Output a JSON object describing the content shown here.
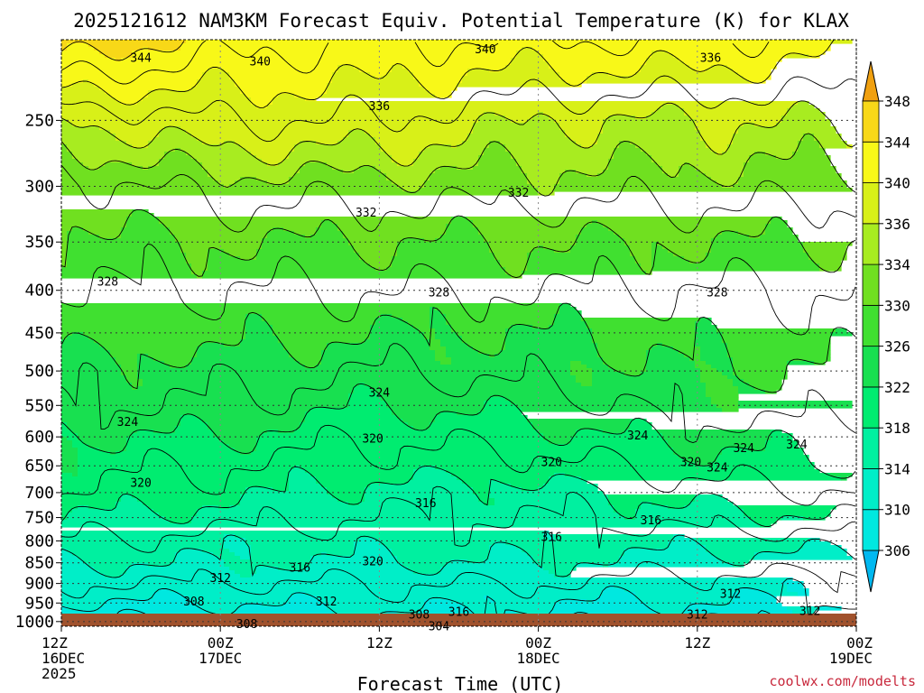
{
  "chart_data": {
    "type": "heatmap",
    "title": "2025121612 NAM3KM Forecast Equiv. Potential Temperature (K) for KLAX",
    "xlabel": "Forecast Time (UTC)",
    "ylabel": "",
    "credit": "coolwx.com/modelts",
    "x_range_hours": [
      0,
      60
    ],
    "y_range_hpa": [
      200,
      1013
    ],
    "y_scale": "log",
    "yticks": [
      250,
      300,
      350,
      400,
      450,
      500,
      550,
      600,
      650,
      700,
      750,
      800,
      850,
      900,
      950,
      1000
    ],
    "ytick_labels": [
      "250",
      "300",
      "350",
      "400",
      "450",
      "500",
      "550",
      "600",
      "650",
      "700",
      "750",
      "800",
      "850",
      "900",
      "950",
      "1000"
    ],
    "xticks": [
      {
        "hour": 0,
        "line1": "12Z",
        "line2": "16DEC",
        "line3": "2025"
      },
      {
        "hour": 12,
        "line1": "00Z",
        "line2": "17DEC",
        "line3": ""
      },
      {
        "hour": 24,
        "line1": "12Z",
        "line2": "",
        "line3": ""
      },
      {
        "hour": 36,
        "line1": "00Z",
        "line2": "18DEC",
        "line3": ""
      },
      {
        "hour": 48,
        "line1": "12Z",
        "line2": "",
        "line3": ""
      },
      {
        "hour": 60,
        "line1": "00Z",
        "line2": "19DEC",
        "line3": ""
      }
    ],
    "colorbar": {
      "units": "K",
      "levels": [
        306,
        310,
        314,
        318,
        322,
        326,
        330,
        334,
        336,
        340,
        344,
        348
      ],
      "labels": [
        "306",
        "310",
        "314",
        "318",
        "322",
        "326",
        "330",
        "334",
        "336",
        "340",
        "344",
        "348"
      ],
      "colors": [
        "#00d8ff",
        "#00e8e0",
        "#00eec8",
        "#00f0a0",
        "#00ec70",
        "#18e050",
        "#40e030",
        "#70e020",
        "#a8ec20",
        "#d8f018",
        "#f8f818",
        "#f8d818",
        "#f0b010"
      ],
      "below_color": "#00b8f0",
      "above_color": "#f0a010"
    },
    "profiles": {
      "pressure": [
        200,
        250,
        300,
        350,
        400,
        450,
        500,
        550,
        600,
        650,
        700,
        750,
        800,
        850,
        900,
        950,
        1000
      ],
      "hour_0": [
        346,
        336,
        331,
        329,
        328,
        327,
        325,
        324,
        322,
        321,
        320,
        318,
        316,
        314,
        312,
        310,
        308
      ],
      "hour_12": [
        343,
        338,
        333,
        330,
        328,
        327,
        325,
        324,
        322,
        320,
        319,
        317,
        315,
        314,
        312,
        310,
        308
      ],
      "hour_24": [
        342,
        338,
        333,
        330,
        328,
        326,
        324,
        322,
        320,
        319,
        317,
        316,
        315,
        314,
        312,
        311,
        309
      ],
      "hour_36": [
        342,
        336,
        333,
        330,
        328,
        326,
        325,
        323,
        321,
        319,
        317,
        316,
        315,
        314,
        312,
        310,
        309
      ],
      "hour_48": [
        342,
        336,
        333,
        330,
        328,
        327,
        326,
        325,
        323,
        321,
        319,
        317,
        315,
        313,
        311,
        310,
        308
      ],
      "hour_60": [
        341,
        336,
        333,
        330,
        328,
        327,
        326,
        325,
        323,
        322,
        320,
        318,
        315,
        313,
        311,
        310,
        308
      ]
    },
    "contour_labels": [
      {
        "value": "344",
        "hour": 6.0,
        "hpa": 210
      },
      {
        "value": "340",
        "hour": 15.0,
        "hpa": 212
      },
      {
        "value": "340",
        "hour": 32.0,
        "hpa": 205
      },
      {
        "value": "336",
        "hour": 49.0,
        "hpa": 210
      },
      {
        "value": "336",
        "hour": 24.0,
        "hpa": 240
      },
      {
        "value": "332",
        "hour": 23.0,
        "hpa": 322
      },
      {
        "value": "332",
        "hour": 34.5,
        "hpa": 305
      },
      {
        "value": "328",
        "hour": 3.5,
        "hpa": 390
      },
      {
        "value": "328",
        "hour": 28.5,
        "hpa": 402
      },
      {
        "value": "328",
        "hour": 49.5,
        "hpa": 402
      },
      {
        "value": "324",
        "hour": 24.0,
        "hpa": 530
      },
      {
        "value": "324",
        "hour": 5.0,
        "hpa": 575
      },
      {
        "value": "324",
        "hour": 43.5,
        "hpa": 597
      },
      {
        "value": "324",
        "hour": 51.5,
        "hpa": 618
      },
      {
        "value": "324",
        "hour": 55.5,
        "hpa": 612
      },
      {
        "value": "324",
        "hour": 49.5,
        "hpa": 652
      },
      {
        "value": "320",
        "hour": 23.5,
        "hpa": 602
      },
      {
        "value": "320",
        "hour": 37.0,
        "hpa": 642
      },
      {
        "value": "320",
        "hour": 47.5,
        "hpa": 642
      },
      {
        "value": "320",
        "hour": 6.0,
        "hpa": 680
      },
      {
        "value": "320",
        "hour": 23.5,
        "hpa": 845
      },
      {
        "value": "316",
        "hour": 27.5,
        "hpa": 720
      },
      {
        "value": "316",
        "hour": 44.5,
        "hpa": 755
      },
      {
        "value": "316",
        "hour": 37.0,
        "hpa": 790
      },
      {
        "value": "316",
        "hour": 18.0,
        "hpa": 860
      },
      {
        "value": "316",
        "hour": 30.0,
        "hpa": 972
      },
      {
        "value": "312",
        "hour": 12.0,
        "hpa": 885
      },
      {
        "value": "312",
        "hour": 20.0,
        "hpa": 945
      },
      {
        "value": "312",
        "hour": 50.5,
        "hpa": 925
      },
      {
        "value": "312",
        "hour": 48.0,
        "hpa": 980
      },
      {
        "value": "312",
        "hour": 56.5,
        "hpa": 970
      },
      {
        "value": "308",
        "hour": 10.0,
        "hpa": 945
      },
      {
        "value": "308",
        "hour": 27.0,
        "hpa": 980
      },
      {
        "value": "308",
        "hour": 14.0,
        "hpa": 1005
      },
      {
        "value": "304",
        "hour": 28.5,
        "hpa": 1012
      }
    ],
    "terrain_color": "#a0522d"
  }
}
